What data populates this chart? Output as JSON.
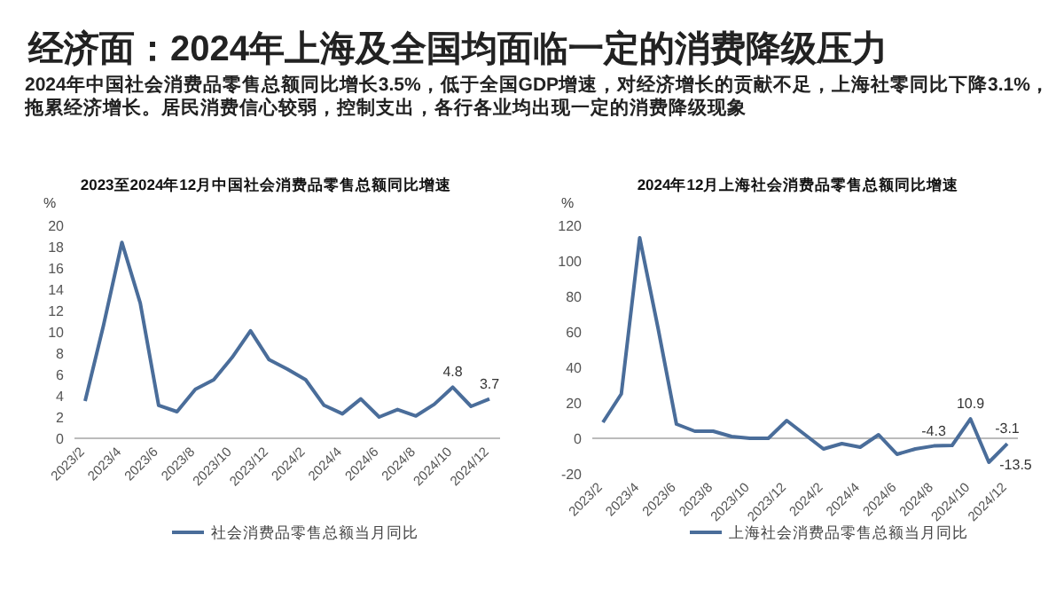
{
  "chart_data": [
    {
      "type": "other",
      "title": "经济面：2024年上海及全国均面临一定的消费降级压力",
      "subtitle": "2024年中国社会消费品零售总额同比增长3.5%，低于全国GDP增速，对经济增长的贡献不足，上海社零同比下降3.1%，拖累经济增长。居民消费信心较弱，控制支出，各行各业均出现一定的消费降级现象"
    },
    {
      "type": "line",
      "title": "2023至2024年12月中国社会消费品零售总额同比增速",
      "ylabel": "%",
      "categories": [
        "2023/2",
        null,
        "2023/4",
        null,
        "2023/6",
        null,
        "2023/8",
        null,
        "2023/10",
        null,
        "2023/12",
        null,
        "2024/2",
        null,
        "2024/4",
        null,
        "2024/6",
        null,
        "2024/8",
        null,
        "2024/10",
        null,
        "2024/12"
      ],
      "series": [
        {
          "name": "社会消费品零售总额当月同比",
          "color": "#4a6d9a",
          "values": [
            3.5,
            10.6,
            18.4,
            12.7,
            3.1,
            2.5,
            4.6,
            5.5,
            7.6,
            10.1,
            7.4,
            6.5,
            5.5,
            3.1,
            2.3,
            3.7,
            2.0,
            2.7,
            2.1,
            3.2,
            4.8,
            3.0,
            3.7
          ],
          "value_labels": [
            null,
            null,
            null,
            null,
            null,
            null,
            null,
            null,
            null,
            null,
            null,
            null,
            null,
            null,
            null,
            null,
            null,
            null,
            null,
            null,
            "4.8",
            null,
            "3.7"
          ]
        }
      ],
      "ylim": [
        0,
        20
      ],
      "yticks": [
        0,
        2,
        4,
        6,
        8,
        10,
        12,
        14,
        16,
        18,
        20
      ],
      "grid": false,
      "legend": "bottom",
      "marker": "none",
      "line_style": "solid"
    },
    {
      "type": "line",
      "title": "2024年12月上海社会消费品零售总额同比增速",
      "ylabel": "%",
      "categories": [
        "2023/2",
        null,
        "2023/4",
        null,
        "2023/6",
        null,
        "2023/8",
        null,
        "2023/10",
        null,
        "2023/12",
        null,
        "2024/2",
        null,
        "2024/4",
        null,
        "2024/6",
        null,
        "2024/8",
        null,
        "2024/10",
        null,
        "2024/12"
      ],
      "series": [
        {
          "name": "上海社会消费品零售总额当月同比",
          "color": "#4a6d9a",
          "values": [
            9,
            25,
            113,
            62,
            8,
            4,
            4,
            1,
            0,
            0,
            10,
            2,
            -6,
            -3,
            -5,
            2,
            -9,
            -6,
            -4.3,
            -4,
            10.9,
            -13.5,
            -3.1
          ],
          "value_labels": [
            null,
            null,
            null,
            null,
            null,
            null,
            null,
            null,
            null,
            null,
            null,
            null,
            null,
            null,
            null,
            null,
            null,
            null,
            "-4.3",
            null,
            "10.9",
            "-13.5",
            "-3.1"
          ]
        }
      ],
      "ylim": [
        -20,
        120
      ],
      "yticks": [
        -20,
        0,
        20,
        40,
        60,
        80,
        100,
        120
      ],
      "ref_lines": [
        {
          "axis": "y",
          "value": 0,
          "color": "#bbbbbb"
        }
      ],
      "legend": "bottom",
      "marker": "none",
      "line_style": "solid"
    }
  ]
}
